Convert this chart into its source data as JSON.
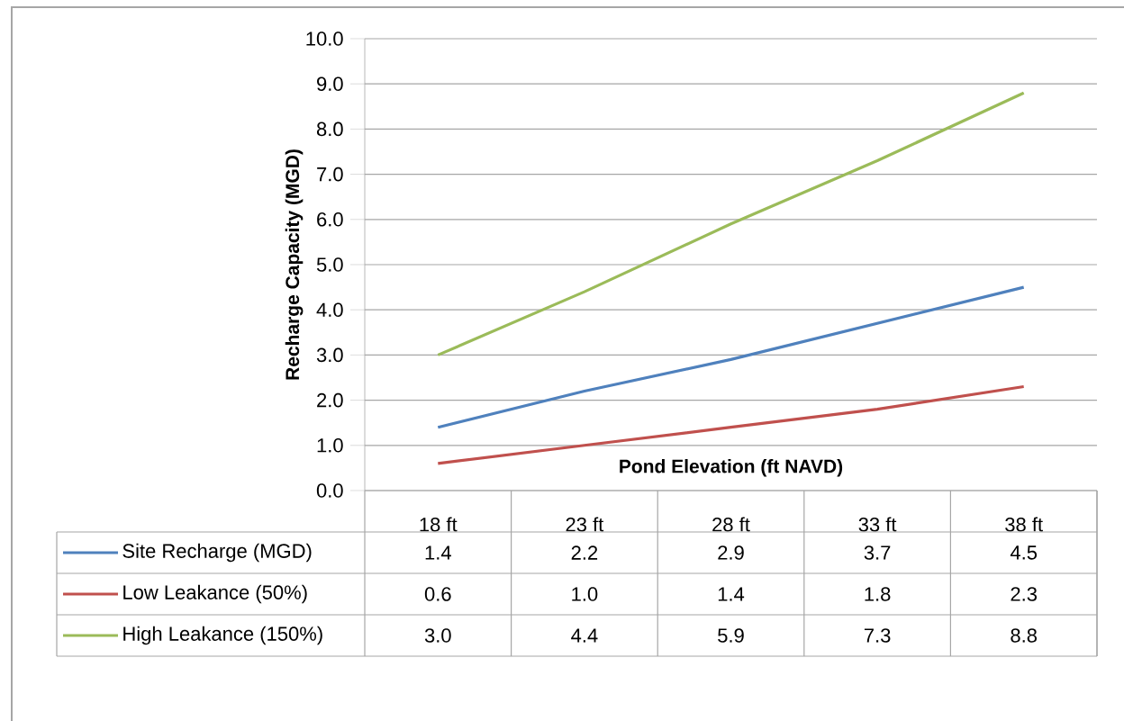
{
  "chart_data": {
    "type": "line",
    "xlabel": "Pond Elevation (ft NAVD)",
    "ylabel": "Recharge Capacity (MGD)",
    "categories": [
      "18 ft",
      "23 ft",
      "28 ft",
      "33 ft",
      "38 ft"
    ],
    "series": [
      {
        "name": "Site Recharge (MGD)",
        "color": "#4f81bd",
        "values": [
          1.4,
          2.2,
          2.9,
          3.7,
          4.5
        ],
        "value_labels": [
          "1.4",
          "2.2",
          "2.9",
          "3.7",
          "4.5"
        ]
      },
      {
        "name": "Low Leakance (50%)",
        "color": "#c0504d",
        "values": [
          0.6,
          1.0,
          1.4,
          1.8,
          2.3
        ],
        "value_labels": [
          "0.6",
          "1.0",
          "1.4",
          "1.8",
          "2.3"
        ]
      },
      {
        "name": "High Leakance (150%)",
        "color": "#9bbb59",
        "values": [
          3.0,
          4.4,
          5.9,
          7.3,
          8.8
        ],
        "value_labels": [
          "3.0",
          "4.4",
          "5.9",
          "7.3",
          "8.8"
        ]
      }
    ],
    "ylim": [
      0,
      10
    ],
    "yticks": [
      {
        "value": 0,
        "label": "0.0"
      },
      {
        "value": 1,
        "label": "1.0"
      },
      {
        "value": 2,
        "label": "2.0"
      },
      {
        "value": 3,
        "label": "3.0"
      },
      {
        "value": 4,
        "label": "4.0"
      },
      {
        "value": 5,
        "label": "5.0"
      },
      {
        "value": 6,
        "label": "6.0"
      },
      {
        "value": 7,
        "label": "7.0"
      },
      {
        "value": 8,
        "label": "8.0"
      },
      {
        "value": 9,
        "label": "9.0"
      },
      {
        "value": 10,
        "label": "10.0"
      }
    ],
    "grid": "y",
    "legend": "bottom",
    "data_labels": true
  }
}
